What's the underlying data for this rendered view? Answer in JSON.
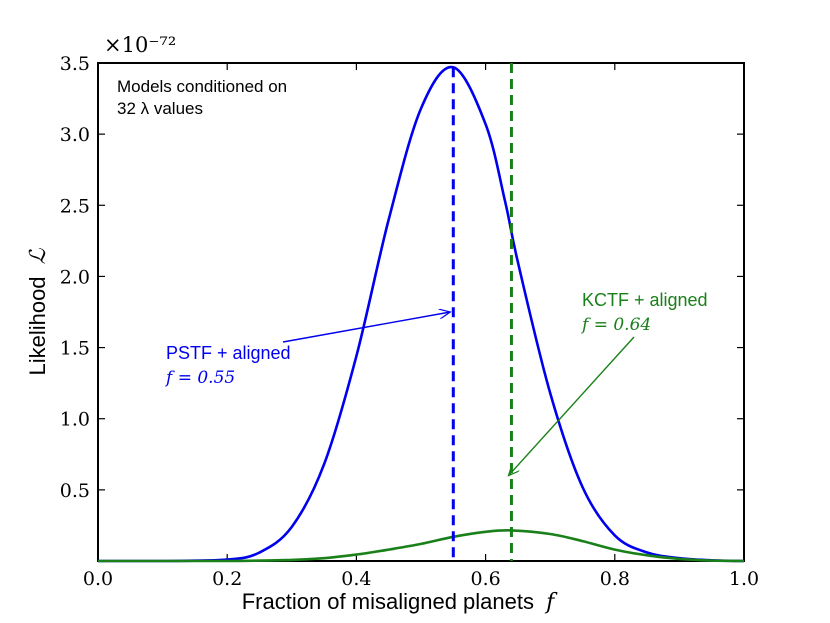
{
  "chart_data": {
    "type": "line",
    "xlabel": "Fraction of misaligned planets",
    "xlabel_var": "f",
    "ylabel": "Likelihood",
    "ylabel_var": "ℒ",
    "y_multiplier": "×10⁻⁷²",
    "xlim": [
      0.0,
      1.0
    ],
    "ylim": [
      0.0,
      3.5
    ],
    "xticks": [
      0.0,
      0.2,
      0.4,
      0.6,
      0.8,
      1.0
    ],
    "xtick_labels": [
      "0.0",
      "0.2",
      "0.4",
      "0.6",
      "0.8",
      "1.0"
    ],
    "yticks": [
      0.5,
      1.0,
      1.5,
      2.0,
      2.5,
      3.0,
      3.5
    ],
    "ytick_labels": [
      "0.5",
      "1.0",
      "1.5",
      "2.0",
      "2.5",
      "3.0",
      "3.5"
    ],
    "series": [
      {
        "name": "PSTF + aligned",
        "color": "#0000ee",
        "peak_f": 0.55,
        "x": [
          0.0,
          0.1,
          0.2,
          0.25,
          0.3,
          0.35,
          0.4,
          0.45,
          0.5,
          0.55,
          0.6,
          0.63,
          0.65,
          0.7,
          0.75,
          0.8,
          0.85,
          0.9,
          0.95,
          1.0
        ],
        "values": [
          0.0,
          0.0,
          0.01,
          0.06,
          0.24,
          0.68,
          1.44,
          2.4,
          3.18,
          3.47,
          3.07,
          2.53,
          2.1,
          1.18,
          0.52,
          0.18,
          0.06,
          0.02,
          0.005,
          0.0
        ]
      },
      {
        "name": "KCTF + aligned",
        "color": "#1a8019",
        "peak_f": 0.64,
        "x": [
          0.0,
          0.2,
          0.3,
          0.35,
          0.4,
          0.45,
          0.5,
          0.55,
          0.6,
          0.64,
          0.7,
          0.75,
          0.8,
          0.85,
          0.9,
          0.95,
          1.0
        ],
        "values": [
          0.0,
          0.0,
          0.008,
          0.02,
          0.045,
          0.08,
          0.12,
          0.17,
          0.205,
          0.215,
          0.19,
          0.14,
          0.08,
          0.04,
          0.015,
          0.003,
          0.0
        ]
      }
    ],
    "vlines": [
      {
        "x": 0.55,
        "color": "#0000ee",
        "style": "dashed"
      },
      {
        "x": 0.64,
        "color": "#1a8019",
        "style": "dashed"
      }
    ],
    "annotations": [
      {
        "label": "PSTF + aligned",
        "value_text": "f = 0.55",
        "color": "#0000ee",
        "arrow_to": [
          0.55,
          1.75
        ]
      },
      {
        "label": "KCTF + aligned",
        "value_text": "f = 0.64",
        "color": "#1a8019",
        "arrow_to": [
          0.64,
          0.6
        ]
      }
    ],
    "text_box": {
      "line1": "Models conditioned on",
      "line2": "32 λ values"
    }
  }
}
